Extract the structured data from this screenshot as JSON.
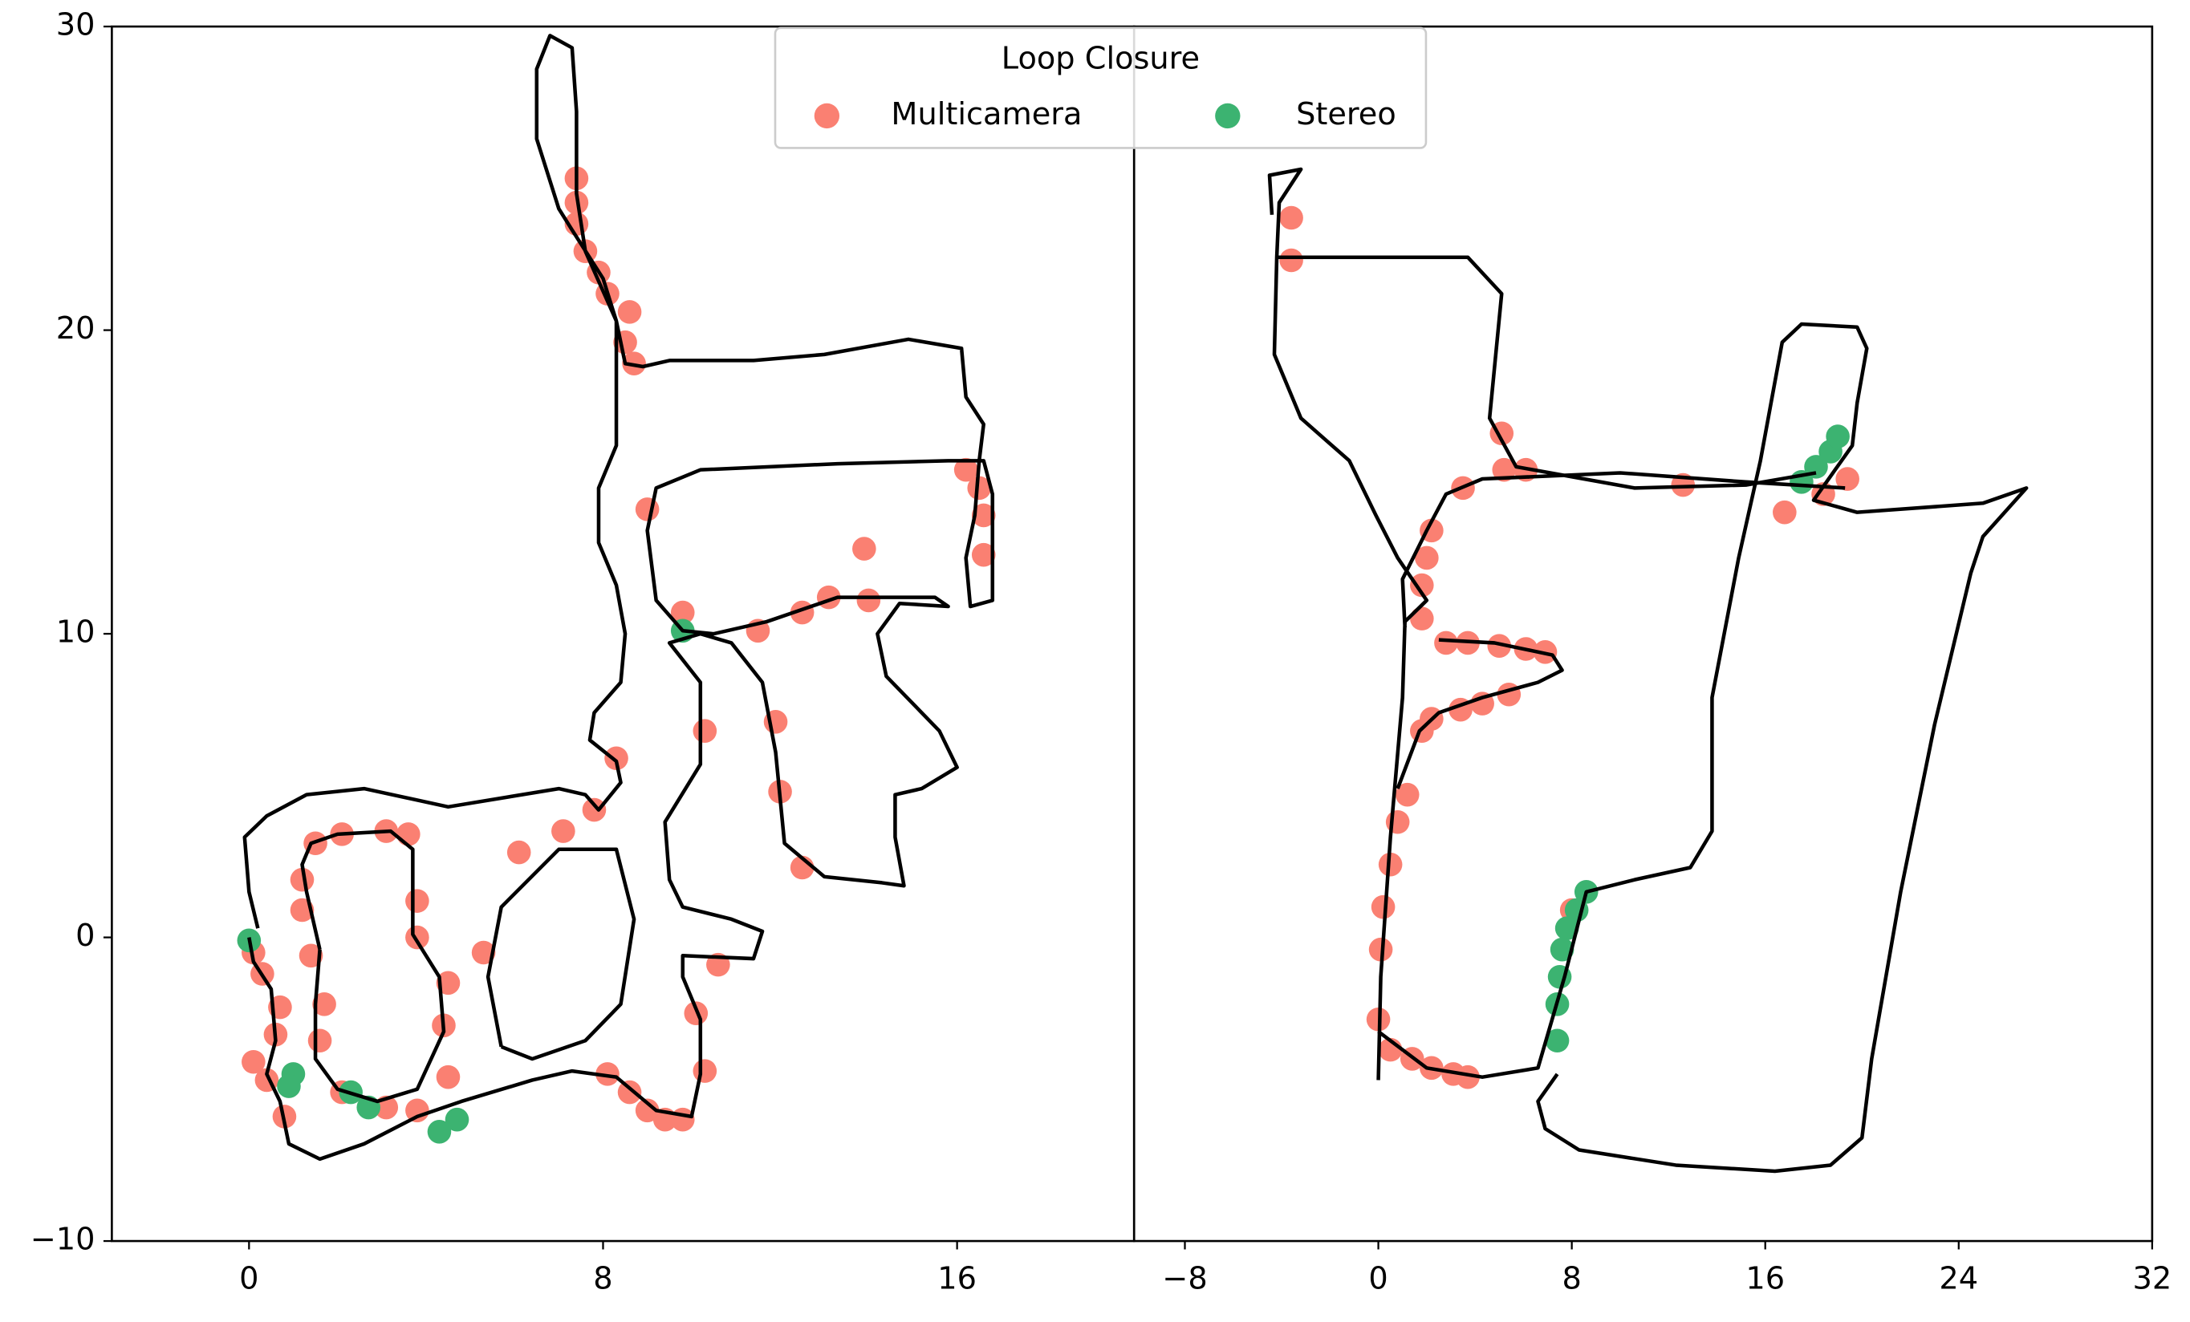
{
  "chart_data": [
    {
      "type": "scatter",
      "xlim": [
        -3.1,
        20
      ],
      "ylim": [
        -10,
        30
      ],
      "xticks": [
        0,
        8,
        16
      ],
      "yticks": [
        {
          "value": -10,
          "label": "−10"
        },
        0,
        10,
        20,
        30
      ],
      "legend_title": "Loop Closure",
      "path": {
        "color": "#000000",
        "x": [
          0,
          0.1,
          0.5,
          0.6,
          0.4,
          0.7,
          0.9,
          1.6,
          2.6,
          3.8,
          4.8,
          6.4,
          7.3,
          8.3,
          9.2,
          10.0,
          10.2,
          10.2,
          9.8,
          9.8,
          11.4,
          11.6,
          10.9,
          9.8,
          9.5,
          9.4,
          10.2,
          10.2,
          9.5,
          10.2,
          10.9,
          11.6,
          11.9,
          12.1,
          13.0,
          14.3,
          14.8,
          14.6,
          14.6,
          15.2,
          16.0,
          15.6,
          14.4,
          14.2,
          14.7,
          15.8,
          15.5,
          13.3,
          11.7,
          10.5,
          9.8,
          9.2,
          9.0,
          9.2,
          10.2,
          13.3,
          15.8,
          16.6,
          16.8,
          16.8,
          16.8,
          16.3,
          16.2,
          16.4,
          16.5,
          16.6,
          16.2,
          16.1,
          14.9,
          13.0,
          11.4,
          9.5,
          8.9,
          8.5,
          8.3,
          8.0,
          7.3,
          7.0,
          6.5,
          6.5,
          6.8,
          7.3,
          7.4,
          7.4,
          7.6,
          8.3,
          8.3,
          8.3,
          7.9,
          7.9,
          8.3,
          8.5,
          8.4,
          7.8,
          7.7,
          8.3,
          8.4,
          7.9,
          7.6,
          7.0,
          4.5,
          2.6,
          1.3,
          0.4,
          -0.1,
          0,
          0.2,
          null,
          1.6,
          1.3,
          1.2,
          1.4,
          2.0,
          3.2,
          3.7,
          3.7,
          4.3,
          4.4,
          3.8,
          2.9,
          2.0,
          1.5,
          1.5,
          1.6,
          null,
          5.7,
          5.4,
          5.7,
          7.0,
          8.3,
          8.7,
          8.4,
          7.6,
          6.4,
          5.7
        ],
        "y": [
          0,
          -0.8,
          -1.7,
          -3.4,
          -4.5,
          -5.4,
          -6.8,
          -7.3,
          -6.8,
          -5.9,
          -5.4,
          -4.7,
          -4.4,
          -4.6,
          -5.7,
          -5.9,
          -4.5,
          -2.7,
          -1.3,
          -0.6,
          -0.7,
          0.2,
          0.6,
          1.0,
          1.9,
          3.8,
          5.7,
          8.4,
          9.7,
          10.0,
          9.7,
          8.4,
          6.1,
          3.1,
          2.0,
          1.8,
          1.7,
          3.3,
          4.7,
          4.9,
          5.6,
          6.8,
          8.6,
          10.0,
          11.0,
          10.9,
          11.2,
          11.2,
          10.4,
          10.0,
          10.1,
          11.1,
          13.4,
          14.8,
          15.4,
          15.6,
          15.7,
          15.7,
          14.6,
          12.7,
          11.1,
          10.9,
          12.5,
          13.9,
          15.7,
          16.9,
          17.8,
          19.4,
          19.7,
          19.2,
          19.0,
          19.0,
          18.8,
          18.9,
          20.3,
          21.7,
          23.3,
          24.0,
          26.3,
          28.6,
          29.7,
          29.3,
          27.2,
          24.5,
          22.6,
          20.3,
          17.6,
          16.2,
          14.8,
          13.0,
          11.6,
          10.0,
          8.4,
          7.4,
          6.5,
          5.8,
          5.1,
          4.2,
          4.7,
          4.9,
          4.3,
          4.9,
          4.7,
          4.0,
          3.3,
          1.5,
          0.3,
          null,
          -0.4,
          1.5,
          2.4,
          3.1,
          3.4,
          3.5,
          2.9,
          0.1,
          -1.3,
          -3.1,
          -5.0,
          -5.4,
          -5.0,
          -4.0,
          -2.2,
          -0.4,
          null,
          -3.6,
          -1.3,
          1.0,
          2.9,
          2.9,
          0.6,
          -2.2,
          -3.4,
          -4.0,
          -3.6
        ]
      },
      "series": [
        {
          "name": "Multicamera",
          "color": "#fa8072",
          "x": [
            7.4,
            7.4,
            7.4,
            7.6,
            7.9,
            8.1,
            8.6,
            8.5,
            8.7,
            9.0,
            9.8,
            10.3,
            11.9,
            12.0,
            12.5,
            11.5,
            12.5,
            13.1,
            14.0,
            13.9,
            16.2,
            16.5,
            16.6,
            16.6,
            8.3,
            7.8,
            7.1,
            6.1,
            5.3,
            3.6,
            3.1,
            2.1,
            1.5,
            1.2,
            1.2,
            1.4,
            1.7,
            1.6,
            2.1,
            3.1,
            3.8,
            4.5,
            4.4,
            4.5,
            3.8,
            3.8,
            0.1,
            0.3,
            0.7,
            0.6,
            0.1,
            0.4,
            0.8,
            8.1,
            8.6,
            9.0,
            9.4,
            9.8,
            10.3,
            10.1,
            10.6
          ],
          "y": [
            25.0,
            24.2,
            23.5,
            22.6,
            21.9,
            21.2,
            20.6,
            19.6,
            18.9,
            14.1,
            10.7,
            6.8,
            7.1,
            4.8,
            2.3,
            10.1,
            10.7,
            11.2,
            11.1,
            12.8,
            15.4,
            14.8,
            13.9,
            12.6,
            5.9,
            4.2,
            3.5,
            2.8,
            -0.5,
            3.4,
            3.5,
            3.4,
            3.1,
            1.9,
            0.9,
            -0.6,
            -2.2,
            -3.4,
            -5.1,
            -5.6,
            -5.7,
            -4.6,
            -2.9,
            -1.5,
            0,
            1.2,
            -0.5,
            -1.2,
            -2.3,
            -3.2,
            -4.1,
            -4.7,
            -5.9,
            -4.5,
            -5.1,
            -5.7,
            -6.0,
            -6.0,
            -4.4,
            -2.5,
            -0.9
          ]
        },
        {
          "name": "Stereo",
          "color": "#3cb371",
          "x": [
            0,
            1.0,
            0.9,
            2.3,
            2.7,
            4.3,
            4.7,
            9.8
          ],
          "y": [
            -0.1,
            -4.5,
            -4.9,
            -5.1,
            -5.6,
            -6.4,
            -6.0,
            10.1
          ]
        }
      ]
    },
    {
      "type": "scatter",
      "xlim": [
        -10.1,
        32
      ],
      "ylim": [
        -10,
        30
      ],
      "xticks": [
        {
          "value": -8,
          "label": "−8"
        },
        0,
        8,
        16,
        24,
        32
      ],
      "path": {
        "color": "#000000",
        "x": [
          0,
          0.1,
          0.5,
          1.0,
          1.1,
          2.0,
          0.8,
          -0.1,
          -1.2,
          -3.2,
          -4.3,
          -4.2,
          -4.1,
          -3.2,
          -4.5,
          -4.4,
          null,
          -4.2,
          3.7,
          5.1,
          4.6,
          5.7,
          10.6,
          15.2,
          18.1,
          null,
          1.1,
          1.0,
          2.0,
          2.8,
          4.3,
          10.0,
          15.2,
          19.3,
          null,
          2.5,
          4.8,
          7.2,
          7.6,
          6.6,
          4.3,
          2.5,
          1.7,
          0.8,
          null,
          0,
          2.0,
          4.3,
          6.6,
          7.7,
          8.6,
          10.6,
          12.9,
          13.8,
          13.8,
          14.9,
          15.8,
          16.7,
          17.5,
          19.8,
          20.2,
          19.8,
          19.6,
          18.0,
          19.8,
          25.0,
          26.8,
          25.0,
          24.5,
          23.0,
          21.6,
          20.4,
          20.0,
          18.7,
          16.4,
          12.3,
          8.3,
          6.9,
          6.6,
          7.4
        ],
        "y": [
          -4.7,
          -1.3,
          3.3,
          7.9,
          10.4,
          11.1,
          12.5,
          13.9,
          15.7,
          17.1,
          19.2,
          22.4,
          24.2,
          25.3,
          25.1,
          23.8,
          null,
          22.4,
          22.4,
          21.2,
          17.1,
          15.5,
          14.8,
          14.9,
          15.3,
          null,
          10.2,
          11.8,
          13.4,
          14.6,
          15.1,
          15.3,
          15.0,
          14.8,
          null,
          9.8,
          9.7,
          9.3,
          8.8,
          8.4,
          7.9,
          7.4,
          6.8,
          4.9,
          null,
          -3.1,
          -4.3,
          -4.6,
          -4.3,
          -1.3,
          1.5,
          1.9,
          2.3,
          3.5,
          7.9,
          12.5,
          15.7,
          19.6,
          20.2,
          20.1,
          19.4,
          17.6,
          16.2,
          14.4,
          14.0,
          14.3,
          14.8,
          13.2,
          12.0,
          7.0,
          1.5,
          -4.0,
          -6.6,
          -7.5,
          -7.7,
          -7.5,
          -7.0,
          -6.3,
          -5.4,
          -4.5
        ]
      },
      "series": [
        {
          "color": "#fa8072",
          "x": [
            -3.6,
            -3.6,
            5.1,
            5.2,
            6.1,
            3.5,
            12.6,
            16.8,
            18.4,
            19.4,
            2.2,
            2.0,
            1.8,
            1.8,
            2.8,
            3.7,
            5.0,
            6.1,
            6.9,
            5.4,
            4.3,
            3.4,
            2.2,
            1.8,
            1.2,
            0.8,
            0.5,
            0.2,
            0.1,
            0,
            0.5,
            1.4,
            2.2,
            3.1,
            3.7,
            8.0
          ],
          "y": [
            23.7,
            22.3,
            16.6,
            15.4,
            15.4,
            14.8,
            14.9,
            14.0,
            14.6,
            15.1,
            13.4,
            12.5,
            11.6,
            10.5,
            9.7,
            9.7,
            9.6,
            9.5,
            9.4,
            8.0,
            7.7,
            7.5,
            7.2,
            6.8,
            4.7,
            3.8,
            2.4,
            1.0,
            -0.4,
            -2.7,
            -3.7,
            -4.0,
            -4.3,
            -4.5,
            -4.6,
            0.9
          ]
        },
        {
          "color": "#3cb371",
          "x": [
            17.5,
            18.1,
            18.7,
            19.0,
            8.6,
            8.2,
            7.8,
            7.6,
            7.5,
            7.4,
            7.4
          ],
          "y": [
            15.0,
            15.5,
            16.0,
            16.5,
            1.5,
            0.9,
            0.3,
            -0.4,
            -1.3,
            -2.2,
            -3.4
          ]
        }
      ]
    }
  ]
}
